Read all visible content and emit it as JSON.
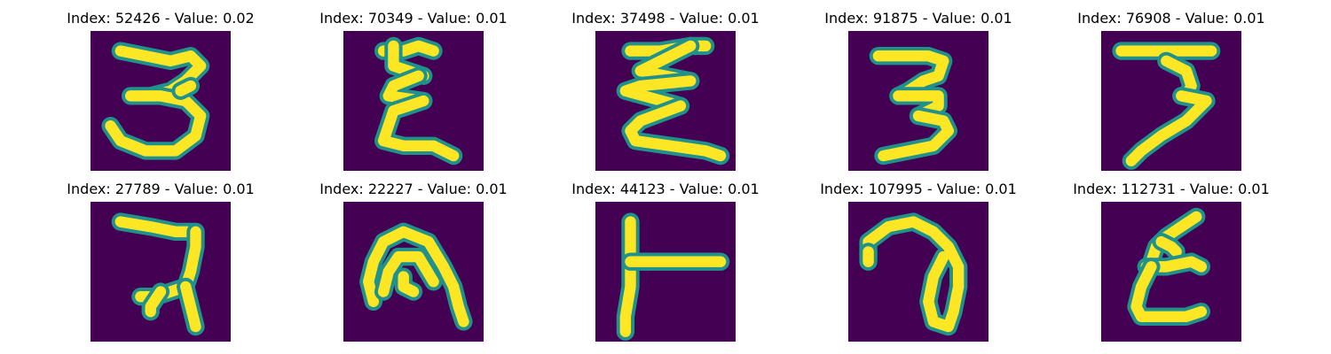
{
  "chart_data": {
    "type": "image_grid",
    "rows": 2,
    "cols": 5,
    "background_color": "#440154",
    "stroke_color": "#fde725",
    "edge_color": "#21918c",
    "panels": [
      {
        "title": "Index: 52426 - Value: 0.02",
        "index": 52426,
        "value": 0.02,
        "glyph": "3",
        "strokes": [
          [
            [
              6,
              4
            ],
            [
              11,
              5
            ],
            [
              16,
              6
            ],
            [
              20,
              5
            ],
            [
              22,
              7
            ],
            [
              19,
              10
            ],
            [
              16,
              12
            ],
            [
              12,
              13
            ]
          ],
          [
            [
              8,
              13
            ],
            [
              14,
              13
            ],
            [
              19,
              14
            ],
            [
              22,
              17
            ],
            [
              21,
              21
            ],
            [
              17,
              24
            ],
            [
              11,
              24
            ],
            [
              6,
              22
            ],
            [
              4,
              19
            ]
          ],
          [
            [
              18,
              12
            ],
            [
              20,
              11
            ]
          ]
        ]
      },
      {
        "title": "Index: 70349 - Value: 0.01",
        "index": 70349,
        "value": 0.01,
        "glyph": "Ɛ",
        "strokes": [
          [
            [
              8,
              4
            ],
            [
              12,
              4
            ],
            [
              15,
              3
            ],
            [
              18,
              4
            ]
          ],
          [
            [
              10,
              3
            ],
            [
              10,
              7
            ],
            [
              16,
              9
            ]
          ],
          [
            [
              15,
              9
            ],
            [
              10,
              11
            ],
            [
              9,
              13
            ],
            [
              16,
              14
            ]
          ],
          [
            [
              16,
              14
            ],
            [
              10,
              16
            ],
            [
              9,
              19
            ],
            [
              8,
              22
            ],
            [
              12,
              23
            ],
            [
              18,
              23
            ],
            [
              22,
              25
            ]
          ]
        ]
      },
      {
        "title": "Index: 37498 - Value: 0.01",
        "index": 37498,
        "value": 0.01,
        "glyph": "Ƶ",
        "strokes": [
          [
            [
              7,
              4
            ],
            [
              13,
              4
            ],
            [
              19,
              3
            ],
            [
              22,
              3
            ]
          ],
          [
            [
              19,
              3
            ],
            [
              9,
              8
            ],
            [
              19,
              10
            ]
          ],
          [
            [
              19,
              10
            ],
            [
              9,
              11
            ],
            [
              6,
              12
            ],
            [
              17,
              15
            ]
          ],
          [
            [
              17,
              15
            ],
            [
              9,
              18
            ],
            [
              7,
              20
            ],
            [
              8,
              22
            ],
            [
              15,
              23
            ],
            [
              22,
              24
            ],
            [
              25,
              25
            ]
          ]
        ]
      },
      {
        "title": "Index: 91875 - Value: 0.01",
        "index": 91875,
        "value": 0.01,
        "glyph": "3",
        "strokes": [
          [
            [
              6,
              5
            ],
            [
              11,
              5
            ],
            [
              16,
              5
            ],
            [
              19,
              6
            ],
            [
              18,
              9
            ],
            [
              15,
              10
            ],
            [
              12,
              12
            ],
            [
              10,
              13
            ]
          ],
          [
            [
              10,
              13
            ],
            [
              15,
              13
            ],
            [
              18,
              13
            ],
            [
              18,
              15
            ],
            [
              14,
              17
            ]
          ],
          [
            [
              14,
              17
            ],
            [
              19,
              18
            ],
            [
              20,
              20
            ],
            [
              17,
              23
            ],
            [
              12,
              24
            ],
            [
              7,
              25
            ]
          ]
        ]
      },
      {
        "title": "Index: 76908 - Value: 0.01",
        "index": 76908,
        "value": 0.01,
        "glyph": "7",
        "strokes": [
          [
            [
              4,
              4
            ],
            [
              11,
              4
            ],
            [
              17,
              4
            ],
            [
              22,
              4
            ]
          ],
          [
            [
              13,
              6
            ],
            [
              17,
              8
            ],
            [
              18,
              11
            ],
            [
              17,
              13
            ]
          ],
          [
            [
              16,
              13
            ],
            [
              21,
              14
            ],
            [
              17,
              18
            ],
            [
              12,
              21
            ],
            [
              8,
              24
            ],
            [
              6,
              26
            ]
          ]
        ]
      },
      {
        "title": "Index: 27789 - Value: 0.01",
        "index": 27789,
        "value": 0.01,
        "glyph": "₴",
        "strokes": [
          [
            [
              6,
              4
            ],
            [
              12,
              5
            ],
            [
              17,
              6
            ],
            [
              21,
              6
            ]
          ],
          [
            [
              21,
              6
            ],
            [
              21,
              9
            ],
            [
              20,
              14
            ],
            [
              19,
              17
            ],
            [
              16,
              18
            ],
            [
              13,
              19
            ],
            [
              10,
              19
            ]
          ],
          [
            [
              19,
              17
            ],
            [
              20,
              21
            ],
            [
              21,
              25
            ]
          ],
          [
            [
              14,
              18
            ],
            [
              12,
              21
            ],
            [
              12,
              22
            ]
          ]
        ]
      },
      {
        "title": "Index: 22227 - Value: 0.01",
        "index": 22227,
        "value": 0.01,
        "glyph": "∩",
        "strokes": [
          [
            [
              6,
              20
            ],
            [
              5,
              16
            ],
            [
              6,
              12
            ],
            [
              8,
              8
            ],
            [
              12,
              6
            ],
            [
              17,
              8
            ],
            [
              20,
              13
            ],
            [
              22,
              17
            ],
            [
              23,
              21
            ],
            [
              24,
              24
            ]
          ],
          [
            [
              8,
              18
            ],
            [
              9,
              14
            ],
            [
              11,
              11
            ],
            [
              15,
              11
            ],
            [
              18,
              16
            ]
          ],
          [
            [
              12,
              15
            ],
            [
              12,
              17
            ],
            [
              14,
              18
            ]
          ]
        ]
      },
      {
        "title": "Index: 44123 - Value: 0.01",
        "index": 44123,
        "value": 0.01,
        "glyph": "⊢",
        "strokes": [
          [
            [
              7,
              4
            ],
            [
              7,
              11
            ],
            [
              7,
              17
            ],
            [
              6,
              23
            ],
            [
              6,
              26
            ]
          ],
          [
            [
              7,
              12
            ],
            [
              14,
              12
            ],
            [
              21,
              12
            ],
            [
              25,
              12
            ]
          ]
        ]
      },
      {
        "title": "Index: 107995 - Value: 0.01",
        "index": 107995,
        "value": 0.01,
        "glyph": "ə",
        "strokes": [
          [
            [
              4,
              11
            ],
            [
              4,
              8
            ],
            [
              8,
              5
            ],
            [
              13,
              4
            ],
            [
              17,
              6
            ],
            [
              20,
              9
            ],
            [
              22,
              13
            ],
            [
              22,
              17
            ],
            [
              21,
              22
            ],
            [
              20,
              25
            ],
            [
              17,
              24
            ],
            [
              16,
              20
            ],
            [
              17,
              15
            ],
            [
              19,
              11
            ]
          ],
          [
            [
              4,
              10
            ],
            [
              4,
              12
            ]
          ]
        ]
      },
      {
        "title": "Index: 112731 - Value: 0.01",
        "index": 112731,
        "value": 0.01,
        "glyph": "ε",
        "strokes": [
          [
            [
              19,
              3
            ],
            [
              16,
              5
            ],
            [
              13,
              7
            ],
            [
              11,
              9
            ],
            [
              10,
              12
            ]
          ],
          [
            [
              12,
              8
            ],
            [
              14,
              9
            ],
            [
              15,
              10
            ]
          ],
          [
            [
              9,
              13
            ],
            [
              13,
              13
            ],
            [
              18,
              12
            ],
            [
              20,
              13
            ]
          ],
          [
            [
              10,
              13
            ],
            [
              8,
              17
            ],
            [
              7,
              21
            ],
            [
              8,
              23
            ],
            [
              13,
              23
            ],
            [
              17,
              23
            ],
            [
              20,
              22
            ]
          ]
        ]
      }
    ]
  }
}
